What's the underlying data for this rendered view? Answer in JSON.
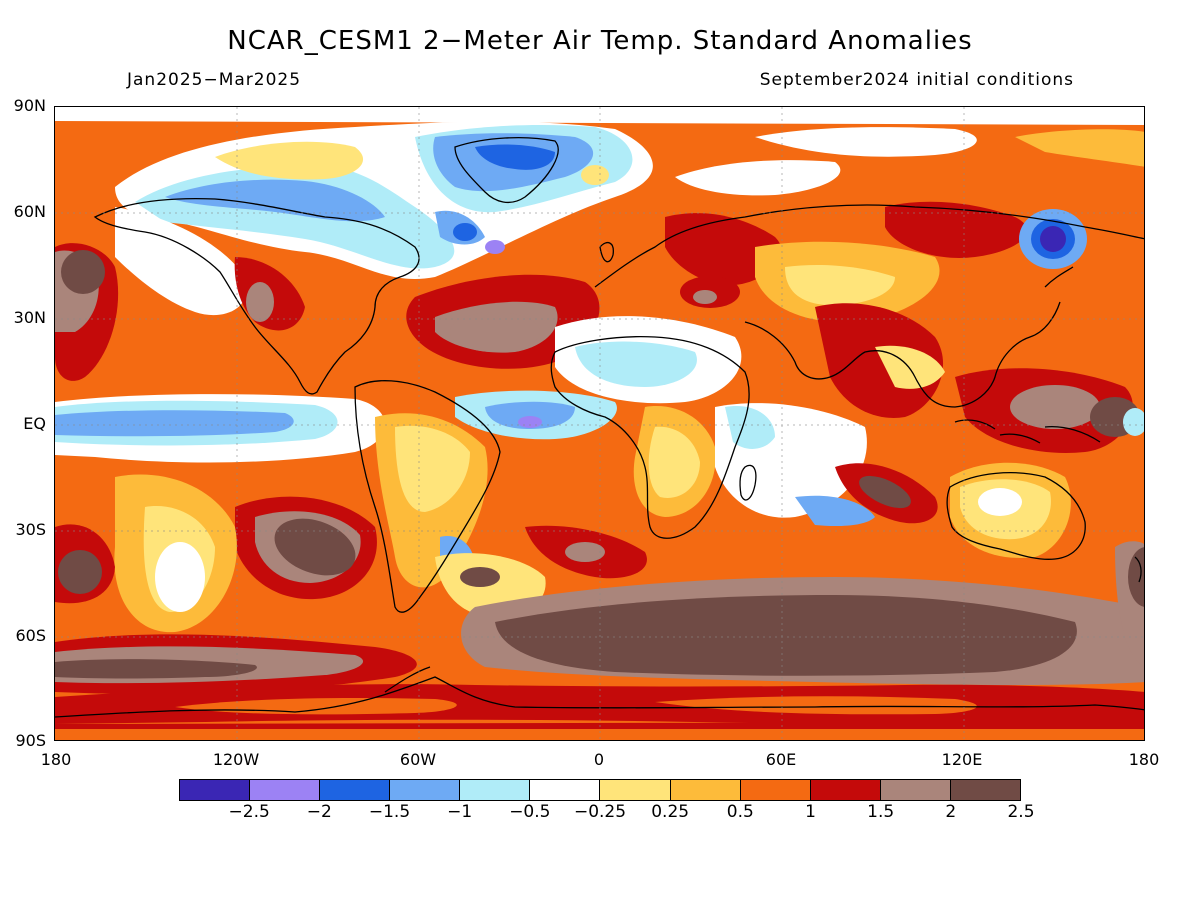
{
  "title": "NCAR_CESM1 2−Meter Air Temp. Standard Anomalies",
  "period": "Jan2025−Mar2025",
  "init": "September2024 initial conditions",
  "lat_labels": [
    "90N",
    "60N",
    "30N",
    "EQ",
    "30S",
    "60S",
    "90S"
  ],
  "lon_labels": [
    "180",
    "120W",
    "60W",
    "0",
    "60E",
    "120E",
    "180"
  ],
  "colorbar": {
    "colors": [
      "#3a26b4",
      "#9c82f4",
      "#1e64e2",
      "#6eaaf4",
      "#b0ecf8",
      "#ffffff",
      "#ffe47a",
      "#fdbb3a",
      "#f46a12",
      "#c40a0a",
      "#aa857b",
      "#704b45"
    ],
    "labels": [
      "−2.5",
      "−2",
      "−1.5",
      "−1",
      "−0.5",
      "−0.25",
      "0.25",
      "0.5",
      "1",
      "1.5",
      "2",
      "2.5"
    ]
  }
}
